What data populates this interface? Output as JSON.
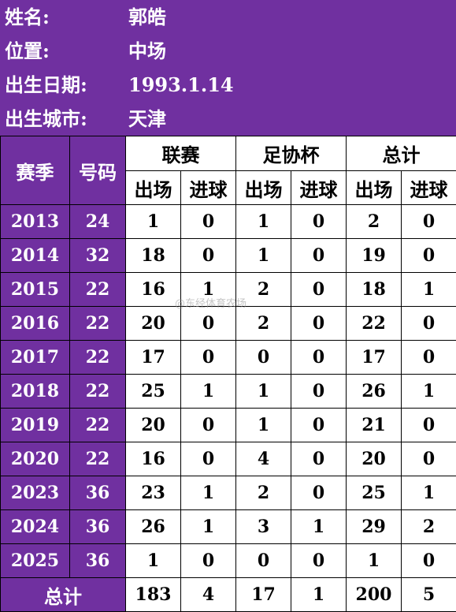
{
  "profile": {
    "name_label": "姓名:",
    "name_value": "郭皓",
    "position_label": "位置:",
    "position_value": "中场",
    "birthdate_label": "出生日期:",
    "birthdate_value": "1993.1.14",
    "birthcity_label": "出生城市:",
    "birthcity_value": "天津"
  },
  "table": {
    "season_header": "赛季",
    "number_header": "号码",
    "groups": [
      "联赛",
      "足协杯",
      "总计"
    ],
    "sub_headers": [
      "出场",
      "进球",
      "出场",
      "进球",
      "出场",
      "进球"
    ],
    "rows": [
      {
        "season": "2013",
        "number": "24",
        "cells": [
          "1",
          "0",
          "1",
          "0",
          "2",
          "0"
        ]
      },
      {
        "season": "2014",
        "number": "32",
        "cells": [
          "18",
          "0",
          "1",
          "0",
          "19",
          "0"
        ]
      },
      {
        "season": "2015",
        "number": "22",
        "cells": [
          "16",
          "1",
          "2",
          "0",
          "18",
          "1"
        ]
      },
      {
        "season": "2016",
        "number": "22",
        "cells": [
          "20",
          "0",
          "2",
          "0",
          "22",
          "0"
        ]
      },
      {
        "season": "2017",
        "number": "22",
        "cells": [
          "17",
          "0",
          "0",
          "0",
          "17",
          "0"
        ]
      },
      {
        "season": "2018",
        "number": "22",
        "cells": [
          "25",
          "1",
          "1",
          "0",
          "26",
          "1"
        ]
      },
      {
        "season": "2019",
        "number": "22",
        "cells": [
          "20",
          "0",
          "1",
          "0",
          "21",
          "0"
        ]
      },
      {
        "season": "2020",
        "number": "22",
        "cells": [
          "16",
          "0",
          "4",
          "0",
          "20",
          "0"
        ]
      },
      {
        "season": "2023",
        "number": "36",
        "cells": [
          "23",
          "1",
          "2",
          "0",
          "25",
          "1"
        ]
      },
      {
        "season": "2024",
        "number": "36",
        "cells": [
          "26",
          "1",
          "3",
          "1",
          "29",
          "2"
        ]
      },
      {
        "season": "2025",
        "number": "36",
        "cells": [
          "1",
          "0",
          "0",
          "0",
          "1",
          "0"
        ]
      }
    ],
    "total_label": "总计",
    "totals": [
      "183",
      "4",
      "17",
      "1",
      "200",
      "5"
    ]
  },
  "watermark": "@东经体育农场",
  "colors": {
    "header_purple": "#7030a0",
    "cell_white": "#ffffff",
    "grid": "#000000"
  }
}
